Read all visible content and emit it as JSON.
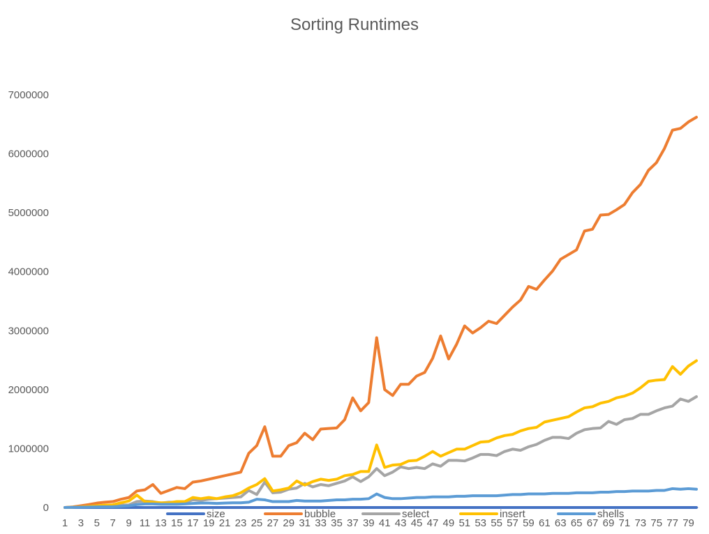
{
  "chart_data": {
    "type": "line",
    "title": "Sorting Runtimes",
    "xlabel": "",
    "ylabel": "",
    "ylim": [
      0,
      7000000
    ],
    "y_ticks": [
      0,
      1000000,
      2000000,
      3000000,
      4000000,
      5000000,
      6000000,
      7000000
    ],
    "y_tick_labels": [
      "0",
      "1000000",
      "2000000",
      "3000000",
      "4000000",
      "5000000",
      "6000000",
      "7000000"
    ],
    "x": [
      1,
      2,
      3,
      4,
      5,
      6,
      7,
      8,
      9,
      10,
      11,
      12,
      13,
      14,
      15,
      16,
      17,
      18,
      19,
      20,
      21,
      22,
      23,
      24,
      25,
      26,
      27,
      28,
      29,
      30,
      31,
      32,
      33,
      34,
      35,
      36,
      37,
      38,
      39,
      40,
      41,
      42,
      43,
      44,
      45,
      46,
      47,
      48,
      49,
      50,
      51,
      52,
      53,
      54,
      55,
      56,
      57,
      58,
      59,
      60,
      61,
      62,
      63,
      64,
      65,
      66,
      67,
      68,
      69,
      70,
      71,
      72,
      73,
      74,
      75,
      76,
      77,
      78,
      79,
      80
    ],
    "x_tick_labels": [
      "1",
      "3",
      "5",
      "7",
      "9",
      "11",
      "13",
      "15",
      "17",
      "19",
      "21",
      "23",
      "25",
      "27",
      "29",
      "31",
      "33",
      "35",
      "37",
      "39",
      "41",
      "43",
      "45",
      "47",
      "49",
      "51",
      "53",
      "55",
      "57",
      "59",
      "61",
      "63",
      "65",
      "67",
      "69",
      "71",
      "73",
      "75",
      "77",
      "79"
    ],
    "grid": false,
    "legend_position": "bottom",
    "series": [
      {
        "name": "size",
        "color": "#4472C4",
        "values": [
          0,
          0,
          0,
          0,
          0,
          0,
          0,
          0,
          0,
          0,
          0,
          0,
          0,
          0,
          0,
          0,
          0,
          0,
          0,
          0,
          0,
          0,
          0,
          0,
          0,
          0,
          0,
          0,
          0,
          0,
          0,
          0,
          0,
          0,
          0,
          0,
          0,
          0,
          0,
          0,
          0,
          0,
          0,
          0,
          0,
          0,
          0,
          0,
          0,
          0,
          0,
          0,
          0,
          0,
          0,
          0,
          0,
          0,
          0,
          0,
          0,
          0,
          0,
          0,
          0,
          0,
          0,
          0,
          0,
          0,
          0,
          0,
          0,
          0,
          0,
          0,
          0,
          0,
          0,
          0
        ]
      },
      {
        "name": "bubble",
        "color": "#ED7D31",
        "values": [
          0,
          10000,
          30000,
          50000,
          75000,
          90000,
          100000,
          140000,
          170000,
          280000,
          300000,
          390000,
          240000,
          290000,
          340000,
          320000,
          430000,
          450000,
          480000,
          510000,
          540000,
          570000,
          600000,
          920000,
          1050000,
          1370000,
          870000,
          870000,
          1050000,
          1100000,
          1260000,
          1150000,
          1330000,
          1340000,
          1350000,
          1490000,
          1860000,
          1640000,
          1780000,
          2880000,
          2000000,
          1900000,
          2090000,
          2090000,
          2230000,
          2290000,
          2530000,
          2910000,
          2520000,
          2770000,
          3080000,
          2960000,
          3050000,
          3160000,
          3120000,
          3260000,
          3400000,
          3520000,
          3750000,
          3700000,
          3860000,
          4010000,
          4210000,
          4290000,
          4370000,
          4690000,
          4720000,
          4960000,
          4970000,
          5050000,
          5140000,
          5340000,
          5480000,
          5720000,
          5850000,
          6090000,
          6400000,
          6430000,
          6540000,
          6620000
        ]
      },
      {
        "name": "select",
        "color": "#A5A5A5",
        "values": [
          0,
          5000,
          10000,
          15000,
          25000,
          30000,
          35000,
          40000,
          45000,
          100000,
          110000,
          100000,
          75000,
          90000,
          90000,
          85000,
          130000,
          120000,
          140000,
          150000,
          160000,
          170000,
          180000,
          290000,
          220000,
          430000,
          250000,
          260000,
          310000,
          330000,
          410000,
          350000,
          390000,
          370000,
          410000,
          450000,
          520000,
          440000,
          520000,
          660000,
          540000,
          600000,
          690000,
          660000,
          680000,
          660000,
          740000,
          700000,
          800000,
          800000,
          790000,
          840000,
          900000,
          900000,
          880000,
          950000,
          990000,
          970000,
          1030000,
          1070000,
          1140000,
          1190000,
          1190000,
          1170000,
          1260000,
          1320000,
          1340000,
          1350000,
          1460000,
          1410000,
          1490000,
          1510000,
          1580000,
          1580000,
          1640000,
          1690000,
          1720000,
          1840000,
          1800000,
          1880000
        ]
      },
      {
        "name": "insert",
        "color": "#FFC000",
        "values": [
          0,
          5000,
          10000,
          20000,
          30000,
          40000,
          45000,
          80000,
          110000,
          210000,
          100000,
          90000,
          80000,
          80000,
          100000,
          100000,
          170000,
          150000,
          170000,
          150000,
          180000,
          200000,
          250000,
          330000,
          390000,
          490000,
          280000,
          300000,
          330000,
          450000,
          380000,
          440000,
          480000,
          460000,
          480000,
          540000,
          560000,
          610000,
          610000,
          1060000,
          680000,
          720000,
          730000,
          790000,
          800000,
          870000,
          950000,
          870000,
          930000,
          990000,
          990000,
          1050000,
          1110000,
          1120000,
          1180000,
          1220000,
          1240000,
          1300000,
          1340000,
          1360000,
          1450000,
          1480000,
          1510000,
          1540000,
          1620000,
          1690000,
          1710000,
          1770000,
          1800000,
          1860000,
          1890000,
          1940000,
          2030000,
          2140000,
          2160000,
          2170000,
          2390000,
          2260000,
          2400000,
          2490000
        ]
      },
      {
        "name": "shells",
        "color": "#5B9BD5",
        "values": [
          0,
          3000,
          5000,
          8000,
          10000,
          12000,
          14000,
          20000,
          30000,
          50000,
          60000,
          60000,
          55000,
          55000,
          55000,
          60000,
          70000,
          75000,
          75000,
          70000,
          75000,
          80000,
          80000,
          90000,
          140000,
          130000,
          100000,
          100000,
          100000,
          120000,
          110000,
          110000,
          110000,
          120000,
          130000,
          130000,
          140000,
          140000,
          150000,
          230000,
          170000,
          150000,
          150000,
          160000,
          170000,
          170000,
          180000,
          180000,
          180000,
          190000,
          190000,
          200000,
          200000,
          200000,
          200000,
          210000,
          220000,
          220000,
          230000,
          230000,
          230000,
          240000,
          240000,
          240000,
          250000,
          250000,
          250000,
          260000,
          260000,
          270000,
          270000,
          280000,
          280000,
          280000,
          290000,
          290000,
          320000,
          310000,
          320000,
          310000
        ]
      }
    ]
  }
}
